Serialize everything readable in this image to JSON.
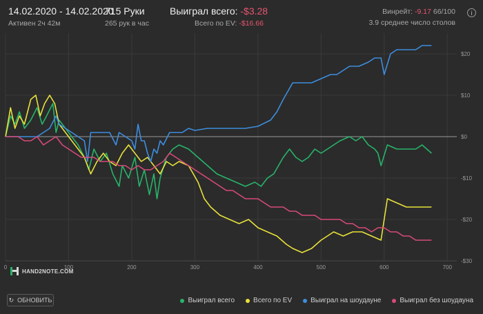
{
  "header": {
    "date_range": "14.02.2020 - 14.02.2020",
    "active": "Активен 2ч 42м",
    "hands": "715 Руки",
    "hands_per_hour": "265 рук в час",
    "won_total_label": "Выиграл всего:",
    "won_total_value": "-$3.28",
    "ev_label": "Всего по EV:",
    "ev_value": "-$16.66",
    "winrate_label": "Винрейт:",
    "winrate_value": "-9.17",
    "winrate_unit": "66/100",
    "avg_tables": "3.9 среднее число столов"
  },
  "refresh_label": "ОБНОВИТЬ",
  "logo_text": "HAND2NOTE.COM",
  "colors": {
    "green": "#27b46a",
    "yellow": "#e8e23a",
    "blue": "#3d8ee0",
    "pink": "#d84a78",
    "negative": "#e8556f"
  },
  "chart_data": {
    "type": "line",
    "xlim": [
      0,
      715
    ],
    "ylim": [
      -30,
      25
    ],
    "x_ticks": [
      0,
      100,
      200,
      300,
      400,
      500,
      600,
      700
    ],
    "x_tick_labels": [
      "0",
      "100",
      "200",
      "300",
      "400",
      "500",
      "600",
      "700"
    ],
    "y_ticks": [
      20,
      10,
      0,
      -10,
      -20,
      -30
    ],
    "y_tick_labels": [
      "$20",
      "$10",
      "$0",
      "-$10",
      "-$20",
      "-$30"
    ],
    "grid": true,
    "legend_position": "bottom-right",
    "series": [
      {
        "name": "Выиграл всего",
        "color": "#27b46a",
        "points": [
          [
            0,
            0
          ],
          [
            8,
            5
          ],
          [
            15,
            3
          ],
          [
            22,
            6
          ],
          [
            30,
            2
          ],
          [
            40,
            4
          ],
          [
            50,
            7
          ],
          [
            58,
            3
          ],
          [
            65,
            5
          ],
          [
            75,
            8
          ],
          [
            80,
            1
          ],
          [
            85,
            4
          ],
          [
            95,
            2
          ],
          [
            105,
            0
          ],
          [
            115,
            -2
          ],
          [
            125,
            -5
          ],
          [
            132,
            -8
          ],
          [
            140,
            -3
          ],
          [
            150,
            -6
          ],
          [
            160,
            -4
          ],
          [
            170,
            -9
          ],
          [
            180,
            -12
          ],
          [
            185,
            -7
          ],
          [
            195,
            -10
          ],
          [
            205,
            -5
          ],
          [
            212,
            -12
          ],
          [
            220,
            -8
          ],
          [
            228,
            -14
          ],
          [
            235,
            -9
          ],
          [
            240,
            -15
          ],
          [
            245,
            -10
          ],
          [
            255,
            -5
          ],
          [
            265,
            -3
          ],
          [
            275,
            -2
          ],
          [
            290,
            -3
          ],
          [
            305,
            -5
          ],
          [
            320,
            -7
          ],
          [
            335,
            -9
          ],
          [
            350,
            -10
          ],
          [
            365,
            -11
          ],
          [
            380,
            -12
          ],
          [
            395,
            -11
          ],
          [
            405,
            -12
          ],
          [
            415,
            -10
          ],
          [
            425,
            -9
          ],
          [
            440,
            -5
          ],
          [
            450,
            -3
          ],
          [
            460,
            -5
          ],
          [
            470,
            -6
          ],
          [
            480,
            -5
          ],
          [
            490,
            -3
          ],
          [
            500,
            -4
          ],
          [
            510,
            -3
          ],
          [
            520,
            -2
          ],
          [
            530,
            -1
          ],
          [
            545,
            0
          ],
          [
            555,
            -1
          ],
          [
            565,
            0
          ],
          [
            575,
            -2
          ],
          [
            585,
            -3
          ],
          [
            590,
            -4
          ],
          [
            595,
            -7
          ],
          [
            605,
            -2
          ],
          [
            620,
            -3
          ],
          [
            635,
            -3
          ],
          [
            650,
            -3
          ],
          [
            660,
            -2
          ],
          [
            675,
            -4
          ]
        ]
      },
      {
        "name": "Всего по EV",
        "color": "#e8e23a",
        "points": [
          [
            0,
            0
          ],
          [
            8,
            7
          ],
          [
            15,
            2
          ],
          [
            22,
            5
          ],
          [
            30,
            3
          ],
          [
            40,
            9
          ],
          [
            48,
            10
          ],
          [
            55,
            5
          ],
          [
            62,
            8
          ],
          [
            70,
            10
          ],
          [
            78,
            8
          ],
          [
            85,
            3
          ],
          [
            95,
            1
          ],
          [
            105,
            -1
          ],
          [
            115,
            -3
          ],
          [
            125,
            -5
          ],
          [
            135,
            -9
          ],
          [
            145,
            -6
          ],
          [
            155,
            -4
          ],
          [
            165,
            -6
          ],
          [
            175,
            -7
          ],
          [
            185,
            -4
          ],
          [
            195,
            -2
          ],
          [
            205,
            -4
          ],
          [
            215,
            -6
          ],
          [
            225,
            -5
          ],
          [
            235,
            -7
          ],
          [
            245,
            -9
          ],
          [
            255,
            -6
          ],
          [
            265,
            -7
          ],
          [
            275,
            -6
          ],
          [
            290,
            -7
          ],
          [
            305,
            -11
          ],
          [
            315,
            -15
          ],
          [
            325,
            -17
          ],
          [
            340,
            -19
          ],
          [
            355,
            -20
          ],
          [
            370,
            -21
          ],
          [
            385,
            -20
          ],
          [
            400,
            -22
          ],
          [
            415,
            -23
          ],
          [
            430,
            -24
          ],
          [
            445,
            -26
          ],
          [
            455,
            -27
          ],
          [
            470,
            -28
          ],
          [
            485,
            -27
          ],
          [
            500,
            -25
          ],
          [
            510,
            -24
          ],
          [
            520,
            -23
          ],
          [
            535,
            -24
          ],
          [
            550,
            -23
          ],
          [
            565,
            -23
          ],
          [
            580,
            -24
          ],
          [
            595,
            -25
          ],
          [
            605,
            -15
          ],
          [
            620,
            -16
          ],
          [
            635,
            -17
          ],
          [
            650,
            -17
          ],
          [
            665,
            -17
          ],
          [
            675,
            -17
          ]
        ]
      },
      {
        "name": "Выиграл на шоудауне",
        "color": "#3d8ee0",
        "points": [
          [
            0,
            0
          ],
          [
            10,
            0
          ],
          [
            20,
            0
          ],
          [
            30,
            0
          ],
          [
            40,
            0
          ],
          [
            50,
            0
          ],
          [
            60,
            1
          ],
          [
            70,
            2
          ],
          [
            80,
            5
          ],
          [
            85,
            3
          ],
          [
            95,
            2
          ],
          [
            105,
            1
          ],
          [
            115,
            0
          ],
          [
            125,
            -1
          ],
          [
            130,
            -6
          ],
          [
            135,
            1
          ],
          [
            145,
            1
          ],
          [
            155,
            1
          ],
          [
            165,
            1
          ],
          [
            175,
            -2
          ],
          [
            180,
            1
          ],
          [
            190,
            0
          ],
          [
            200,
            -1
          ],
          [
            205,
            -3
          ],
          [
            210,
            3
          ],
          [
            215,
            -1
          ],
          [
            220,
            -1
          ],
          [
            225,
            -4
          ],
          [
            230,
            -6
          ],
          [
            235,
            -3
          ],
          [
            240,
            -4
          ],
          [
            245,
            -1
          ],
          [
            250,
            -2
          ],
          [
            260,
            1
          ],
          [
            270,
            1
          ],
          [
            280,
            1
          ],
          [
            290,
            2
          ],
          [
            300,
            1.5
          ],
          [
            320,
            2
          ],
          [
            340,
            2
          ],
          [
            360,
            2
          ],
          [
            380,
            2
          ],
          [
            400,
            2.5
          ],
          [
            420,
            4
          ],
          [
            430,
            6
          ],
          [
            440,
            9
          ],
          [
            455,
            13
          ],
          [
            470,
            13
          ],
          [
            485,
            13
          ],
          [
            500,
            14
          ],
          [
            515,
            15
          ],
          [
            525,
            15
          ],
          [
            535,
            16
          ],
          [
            545,
            17
          ],
          [
            560,
            17
          ],
          [
            575,
            18
          ],
          [
            585,
            19
          ],
          [
            595,
            19
          ],
          [
            600,
            15
          ],
          [
            610,
            20
          ],
          [
            620,
            21
          ],
          [
            635,
            21
          ],
          [
            650,
            21
          ],
          [
            660,
            22
          ],
          [
            675,
            22
          ]
        ]
      },
      {
        "name": "Выиграл без шоудауна",
        "color": "#d84a78",
        "points": [
          [
            0,
            0
          ],
          [
            10,
            0
          ],
          [
            20,
            0
          ],
          [
            30,
            -1
          ],
          [
            40,
            -1
          ],
          [
            50,
            0
          ],
          [
            60,
            -2
          ],
          [
            70,
            -1
          ],
          [
            80,
            0
          ],
          [
            90,
            -2
          ],
          [
            100,
            -3
          ],
          [
            110,
            -4
          ],
          [
            120,
            -5
          ],
          [
            130,
            -5
          ],
          [
            140,
            -5
          ],
          [
            150,
            -6
          ],
          [
            160,
            -6
          ],
          [
            170,
            -6
          ],
          [
            180,
            -7
          ],
          [
            190,
            -7
          ],
          [
            200,
            -8
          ],
          [
            210,
            -7
          ],
          [
            220,
            -8
          ],
          [
            230,
            -8
          ],
          [
            240,
            -7
          ],
          [
            250,
            -6
          ],
          [
            260,
            -4
          ],
          [
            270,
            -5
          ],
          [
            280,
            -6
          ],
          [
            290,
            -7
          ],
          [
            300,
            -8
          ],
          [
            310,
            -9
          ],
          [
            320,
            -10
          ],
          [
            330,
            -11
          ],
          [
            340,
            -12
          ],
          [
            350,
            -13
          ],
          [
            360,
            -13
          ],
          [
            370,
            -14
          ],
          [
            380,
            -15
          ],
          [
            390,
            -15
          ],
          [
            400,
            -15
          ],
          [
            410,
            -16
          ],
          [
            420,
            -17
          ],
          [
            430,
            -17
          ],
          [
            440,
            -17
          ],
          [
            450,
            -18
          ],
          [
            460,
            -18
          ],
          [
            470,
            -19
          ],
          [
            480,
            -19
          ],
          [
            490,
            -19
          ],
          [
            500,
            -20
          ],
          [
            510,
            -20
          ],
          [
            520,
            -20
          ],
          [
            530,
            -20
          ],
          [
            540,
            -21
          ],
          [
            550,
            -21
          ],
          [
            560,
            -22
          ],
          [
            570,
            -22
          ],
          [
            580,
            -23
          ],
          [
            590,
            -22
          ],
          [
            600,
            -22
          ],
          [
            610,
            -23
          ],
          [
            620,
            -23
          ],
          [
            630,
            -24
          ],
          [
            640,
            -24
          ],
          [
            650,
            -25
          ],
          [
            660,
            -25
          ],
          [
            675,
            -25
          ]
        ]
      }
    ]
  }
}
